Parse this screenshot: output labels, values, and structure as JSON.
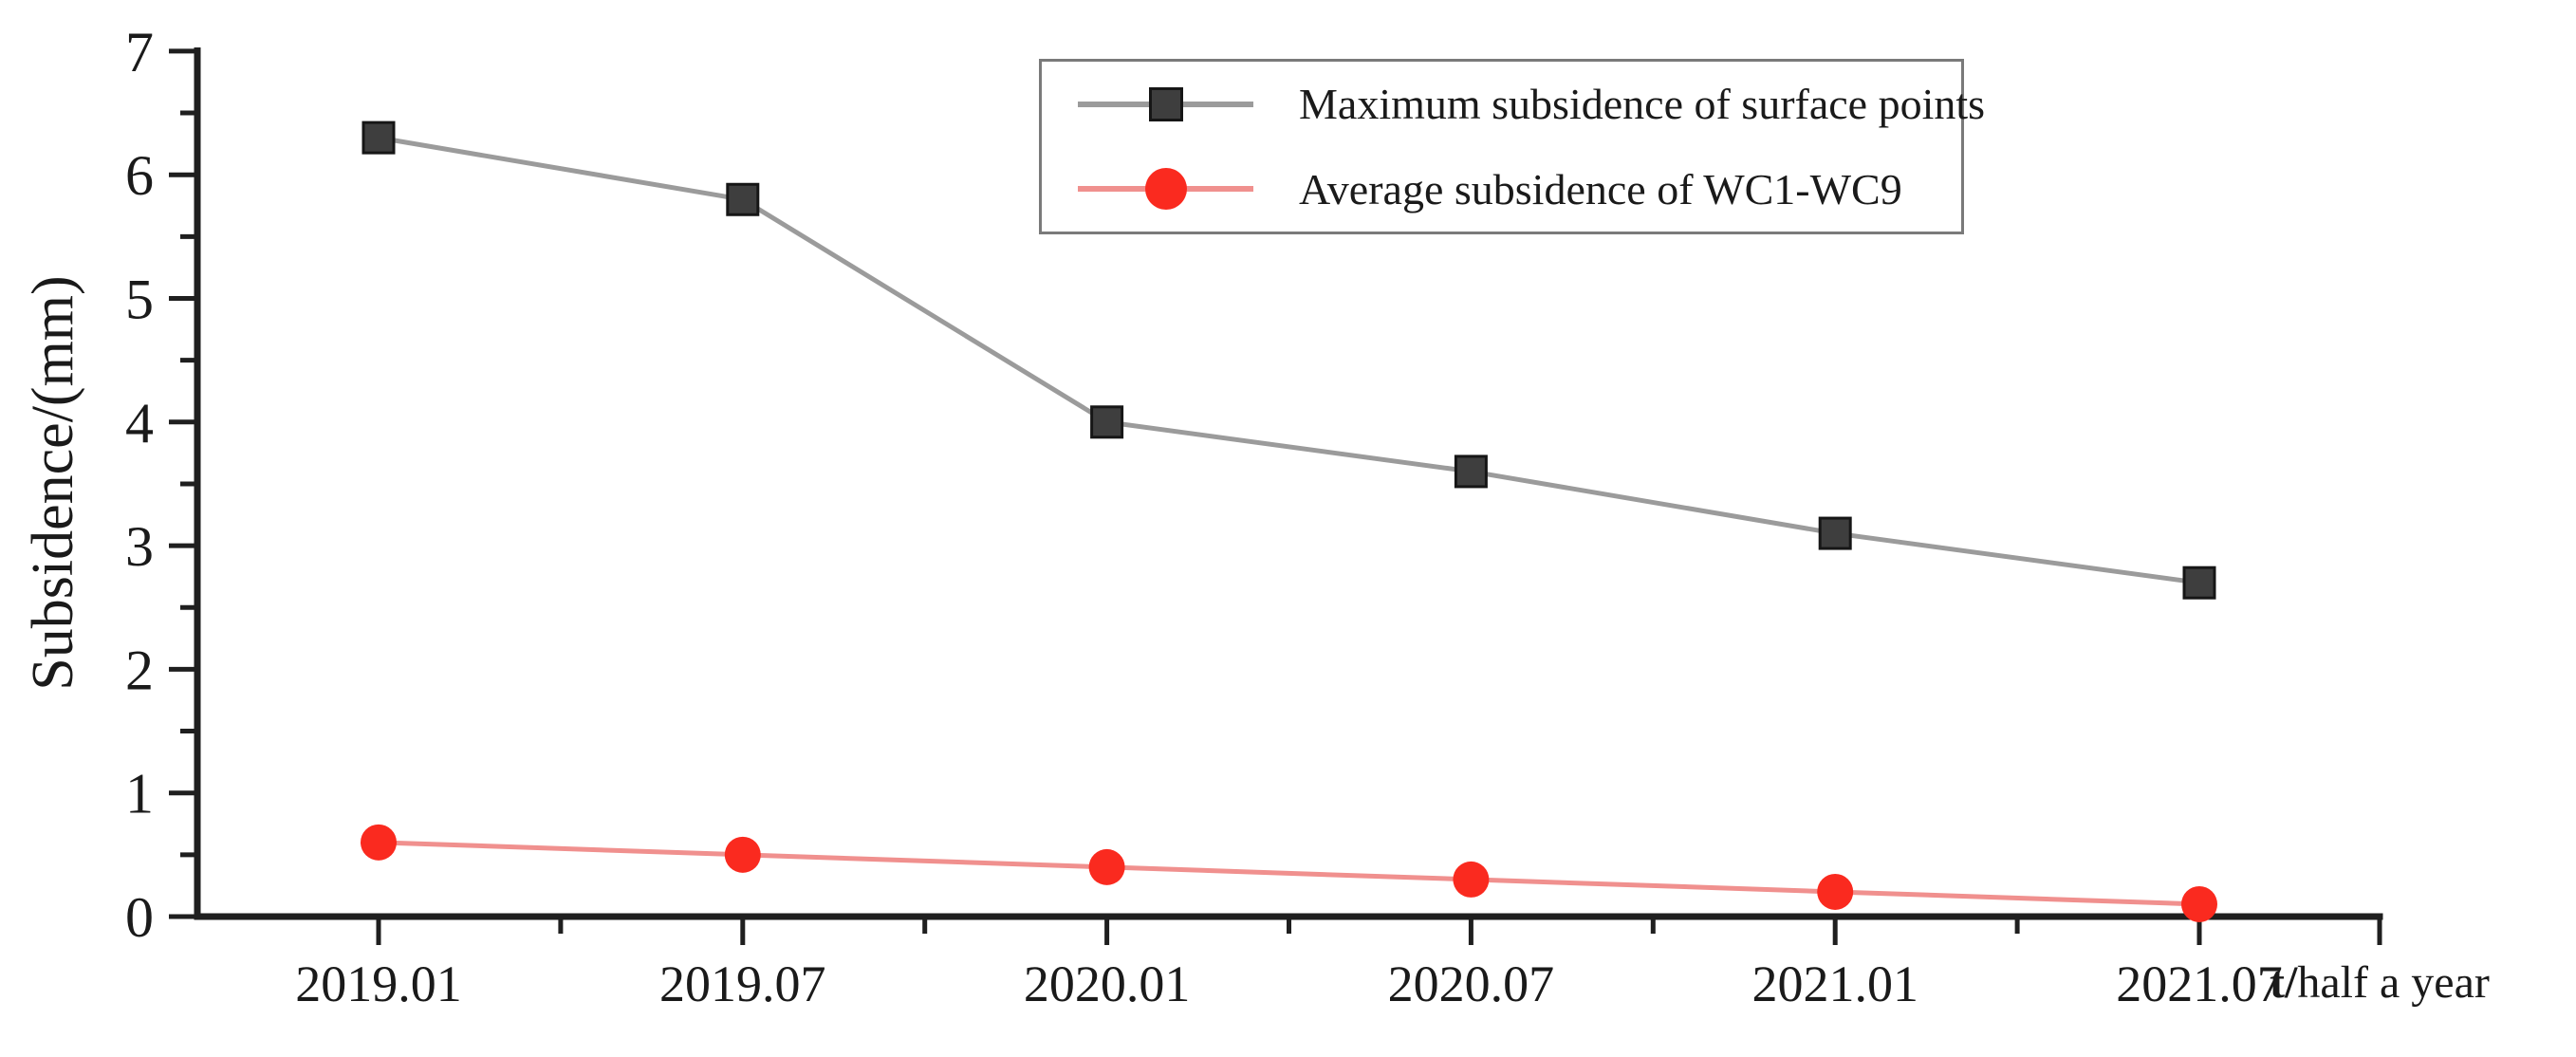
{
  "style": {
    "background": "#ffffff",
    "axis_color": "#1f1f1f",
    "text_color": "#1a1a1a",
    "legend_border_color": "#7a7a7a"
  },
  "chart_data": {
    "type": "line",
    "title": "",
    "xlabel": "t/half a year",
    "ylabel": "Subsidence/(mm)",
    "categories": [
      "2019.01",
      "2019.07",
      "2020.01",
      "2020.07",
      "2021.01",
      "2021.07"
    ],
    "series": [
      {
        "name": "Maximum subsidence of surface points",
        "marker": "square",
        "marker_color": "#3e3e3e",
        "marker_edge_color": "#161616",
        "line_color": "#9b9b9b",
        "values": [
          6.3,
          5.8,
          4.0,
          3.6,
          3.1,
          2.7
        ]
      },
      {
        "name": "Average subsidence of WC1-WC9",
        "marker": "circle",
        "marker_color": "#fa2a1f",
        "marker_edge_color": "#fa2a1f",
        "line_color": "#f0908e",
        "values": [
          0.6,
          0.5,
          0.4,
          0.3,
          0.2,
          0.1
        ]
      }
    ],
    "ylim": [
      0,
      7
    ],
    "yticks": [
      0,
      1,
      2,
      3,
      4,
      5,
      6,
      7
    ],
    "y_minor_step": 0.5,
    "x_minor": "midpoints",
    "grid": false,
    "legend_position": "top-center-right"
  }
}
